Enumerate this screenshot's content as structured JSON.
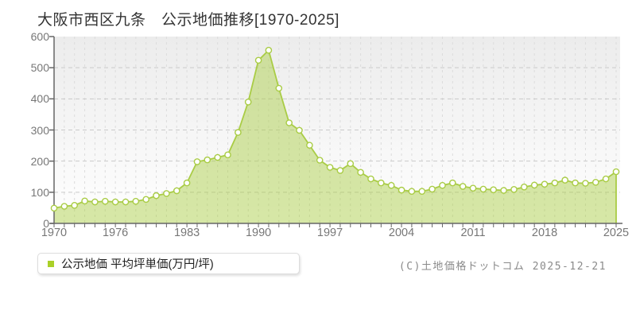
{
  "page": {
    "title": "大阪市西区九条　公示地価推移[1970-2025]",
    "copyright": "(C)土地価格ドットコム 2025-12-21"
  },
  "legend": {
    "label": "公示地価 平均坪単価(万円/坪)",
    "swatch_color": "#aad028"
  },
  "chart_data": {
    "type": "area",
    "title": "大阪市西区九条 公示地価推移[1970-2025]",
    "ylabel": "平均坪単価(万円/坪)",
    "unit": "万円/坪",
    "x": [
      1970,
      1971,
      1972,
      1973,
      1974,
      1975,
      1976,
      1977,
      1978,
      1979,
      1980,
      1981,
      1982,
      1983,
      1984,
      1985,
      1986,
      1987,
      1988,
      1989,
      1990,
      1991,
      1992,
      1993,
      1994,
      1995,
      1996,
      1997,
      1998,
      1999,
      2000,
      2001,
      2002,
      2003,
      2004,
      2005,
      2006,
      2007,
      2008,
      2009,
      2010,
      2011,
      2012,
      2013,
      2014,
      2015,
      2016,
      2017,
      2018,
      2019,
      2020,
      2021,
      2022,
      2023,
      2024,
      2025
    ],
    "series": [
      {
        "name": "公示地価 平均坪単価(万円/坪)",
        "values": [
          49,
          55,
          58,
          72,
          69,
          71,
          69,
          69,
          71,
          77,
          89,
          96,
          105,
          130,
          198,
          204,
          212,
          220,
          292,
          390,
          524,
          556,
          434,
          323,
          299,
          251,
          203,
          180,
          170,
          192,
          164,
          143,
          130,
          122,
          107,
          103,
          103,
          110,
          122,
          130,
          119,
          113,
          110,
          108,
          106,
          109,
          117,
          123,
          126,
          130,
          139,
          130,
          129,
          132,
          143,
          166
        ]
      }
    ],
    "ylim": [
      0,
      600
    ],
    "yticks": [
      0,
      100,
      200,
      300,
      400,
      500,
      600
    ],
    "xtick_labels": [
      1970,
      1976,
      1983,
      1990,
      1997,
      2004,
      2011,
      2018,
      2025
    ],
    "grid": "dashed",
    "legend_position": "bottom-left",
    "colors": {
      "area_fill": "#aed04e",
      "area_fill_opacity": 0.5,
      "line": "#a9cc45",
      "marker_fill": "#ffffff",
      "marker_stroke": "#a9cc45",
      "axis": "#666666",
      "grid_h": "#c9c9c9",
      "grid_v": "#dcdcdc",
      "plot_bg_top": "#ececec",
      "plot_bg_bottom": "#ffffff"
    }
  }
}
